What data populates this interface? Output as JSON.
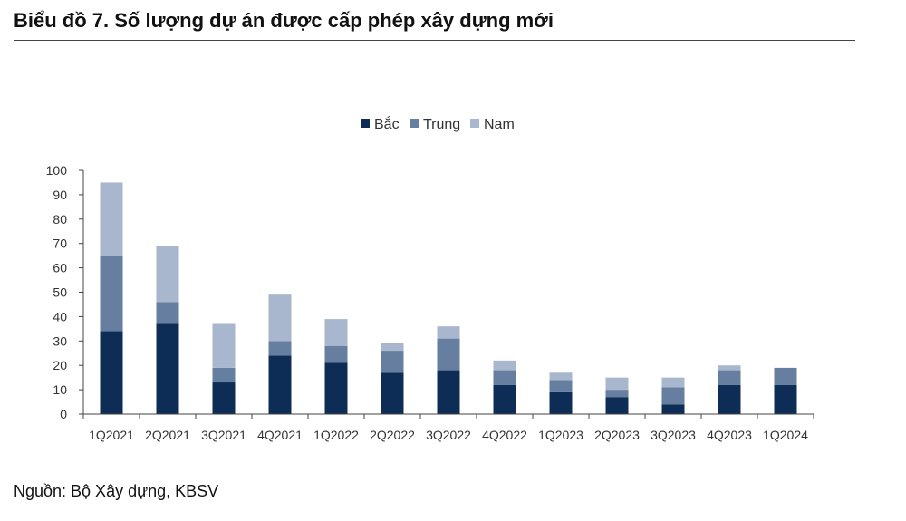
{
  "title": "Biểu đồ 7. Số lượng dự án được cấp phép xây dựng mới",
  "source": "Nguồn: Bộ Xây dựng, KBSV",
  "colors": {
    "bac": "#0d2d57",
    "trung": "#667e9f",
    "nam": "#a8b7cd"
  },
  "chart_data": {
    "type": "bar",
    "stacked": true,
    "categories": [
      "1Q2021",
      "2Q2021",
      "3Q2021",
      "4Q2021",
      "1Q2022",
      "2Q2022",
      "3Q2022",
      "4Q2022",
      "1Q2023",
      "2Q2023",
      "3Q2023",
      "4Q2023",
      "1Q2024"
    ],
    "series": [
      {
        "name": "Bắc",
        "values": [
          34,
          37,
          13,
          24,
          21,
          17,
          18,
          12,
          9,
          7,
          4,
          12,
          12
        ]
      },
      {
        "name": "Trung",
        "values": [
          31,
          9,
          6,
          6,
          7,
          9,
          13,
          6,
          5,
          3,
          7,
          6,
          7
        ]
      },
      {
        "name": "Nam",
        "values": [
          30,
          23,
          18,
          19,
          11,
          3,
          5,
          4,
          3,
          5,
          4,
          2,
          0
        ]
      }
    ],
    "ylim": [
      0,
      100
    ],
    "yticks": [
      0,
      10,
      20,
      30,
      40,
      50,
      60,
      70,
      80,
      90,
      100
    ],
    "legend_position": "top-center",
    "grid": false
  }
}
